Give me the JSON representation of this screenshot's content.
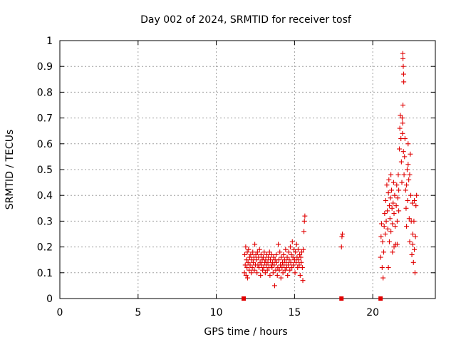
{
  "chart_data": {
    "type": "scatter",
    "title": "Day 002 of 2024, SRMTID for receiver tosf",
    "xlabel": "GPS time / hours",
    "ylabel": "SRMTID / TECUs",
    "xlim": [
      0,
      24
    ],
    "ylim": [
      0,
      1
    ],
    "x_ticks": [
      0,
      5,
      10,
      15,
      20
    ],
    "x_tick_labels": [
      "0",
      "5",
      "10",
      "15",
      "20"
    ],
    "y_ticks": [
      0,
      0.1,
      0.2,
      0.3,
      0.4,
      0.5,
      0.6,
      0.7,
      0.8,
      0.9,
      1
    ],
    "y_tick_labels": [
      "0",
      "0.1",
      "0.2",
      "0.3",
      "0.4",
      "0.5",
      "0.6",
      "0.7",
      "0.8",
      "0.9",
      "1"
    ],
    "grid": true,
    "marker": "+",
    "series": [
      {
        "name": "SRMTID",
        "color": "#e00000",
        "points": [
          [
            11.8,
            0.1
          ],
          [
            11.82,
            0.17
          ],
          [
            11.85,
            0.13
          ],
          [
            11.88,
            0.2
          ],
          [
            11.9,
            0.09
          ],
          [
            11.93,
            0.15
          ],
          [
            11.96,
            0.12
          ],
          [
            11.98,
            0.18
          ],
          [
            12.0,
            0.08
          ],
          [
            12.03,
            0.14
          ],
          [
            12.06,
            0.19
          ],
          [
            12.1,
            0.11
          ],
          [
            12.13,
            0.16
          ],
          [
            12.16,
            0.13
          ],
          [
            12.2,
            0.17
          ],
          [
            12.23,
            0.1
          ],
          [
            12.26,
            0.15
          ],
          [
            12.3,
            0.12
          ],
          [
            12.33,
            0.18
          ],
          [
            12.36,
            0.14
          ],
          [
            12.4,
            0.16
          ],
          [
            12.43,
            0.11
          ],
          [
            12.46,
            0.21
          ],
          [
            12.5,
            0.13
          ],
          [
            12.53,
            0.17
          ],
          [
            12.56,
            0.15
          ],
          [
            12.6,
            0.1
          ],
          [
            12.63,
            0.18
          ],
          [
            12.66,
            0.13
          ],
          [
            12.7,
            0.16
          ],
          [
            12.73,
            0.12
          ],
          [
            12.76,
            0.19
          ],
          [
            12.8,
            0.14
          ],
          [
            12.83,
            0.09
          ],
          [
            12.86,
            0.17
          ],
          [
            12.9,
            0.13
          ],
          [
            12.93,
            0.15
          ],
          [
            12.96,
            0.11
          ],
          [
            13.0,
            0.16
          ],
          [
            13.03,
            0.12
          ],
          [
            13.06,
            0.18
          ],
          [
            13.1,
            0.14
          ],
          [
            13.13,
            0.1
          ],
          [
            13.16,
            0.15
          ],
          [
            13.2,
            0.13
          ],
          [
            13.23,
            0.17
          ],
          [
            13.26,
            0.11
          ],
          [
            13.3,
            0.14
          ],
          [
            13.33,
            0.16
          ],
          [
            13.36,
            0.12
          ],
          [
            13.4,
            0.18
          ],
          [
            13.43,
            0.09
          ],
          [
            13.46,
            0.15
          ],
          [
            13.5,
            0.13
          ],
          [
            13.53,
            0.17
          ],
          [
            13.56,
            0.12
          ],
          [
            13.6,
            0.14
          ],
          [
            13.63,
            0.1
          ],
          [
            13.66,
            0.16
          ],
          [
            13.7,
            0.13
          ],
          [
            13.73,
            0.05
          ],
          [
            13.76,
            0.15
          ],
          [
            13.8,
            0.11
          ],
          [
            13.83,
            0.17
          ],
          [
            13.86,
            0.14
          ],
          [
            13.9,
            0.09
          ],
          [
            13.93,
            0.12
          ],
          [
            13.96,
            0.21
          ],
          [
            14.0,
            0.15
          ],
          [
            14.03,
            0.11
          ],
          [
            14.06,
            0.18
          ],
          [
            14.1,
            0.13
          ],
          [
            14.13,
            0.08
          ],
          [
            14.16,
            0.16
          ],
          [
            14.2,
            0.12
          ],
          [
            14.23,
            0.14
          ],
          [
            14.26,
            0.1
          ],
          [
            14.3,
            0.17
          ],
          [
            14.33,
            0.13
          ],
          [
            14.36,
            0.15
          ],
          [
            14.4,
            0.11
          ],
          [
            14.43,
            0.19
          ],
          [
            14.46,
            0.14
          ],
          [
            14.5,
            0.12
          ],
          [
            14.53,
            0.16
          ],
          [
            14.56,
            0.09
          ],
          [
            14.6,
            0.13
          ],
          [
            14.63,
            0.18
          ],
          [
            14.66,
            0.15
          ],
          [
            14.7,
            0.11
          ],
          [
            14.73,
            0.2
          ],
          [
            14.76,
            0.14
          ],
          [
            14.8,
            0.17
          ],
          [
            14.83,
            0.12
          ],
          [
            14.86,
            0.22
          ],
          [
            14.9,
            0.16
          ],
          [
            14.93,
            0.13
          ],
          [
            14.96,
            0.19
          ],
          [
            15.0,
            0.15
          ],
          [
            15.03,
            0.1
          ],
          [
            15.06,
            0.18
          ],
          [
            15.1,
            0.14
          ],
          [
            15.13,
            0.21
          ],
          [
            15.16,
            0.16
          ],
          [
            15.2,
            0.12
          ],
          [
            15.23,
            0.19
          ],
          [
            15.26,
            0.15
          ],
          [
            15.3,
            0.13
          ],
          [
            15.33,
            0.17
          ],
          [
            15.36,
            0.09
          ],
          [
            15.4,
            0.16
          ],
          [
            15.43,
            0.14
          ],
          [
            15.46,
            0.18
          ],
          [
            15.5,
            0.12
          ],
          [
            15.53,
            0.07
          ],
          [
            15.56,
            0.19
          ],
          [
            15.6,
            0.26
          ],
          [
            15.63,
            0.3
          ],
          [
            15.66,
            0.32
          ],
          [
            18.0,
            0.2
          ],
          [
            18.03,
            0.24
          ],
          [
            18.06,
            0.25
          ],
          [
            20.5,
            0.16
          ],
          [
            20.53,
            0.24
          ],
          [
            20.56,
            0.29
          ],
          [
            20.6,
            0.12
          ],
          [
            20.63,
            0.22
          ],
          [
            20.66,
            0.08
          ],
          [
            20.7,
            0.18
          ],
          [
            20.73,
            0.28
          ],
          [
            20.76,
            0.33
          ],
          [
            20.8,
            0.25
          ],
          [
            20.83,
            0.38
          ],
          [
            20.86,
            0.3
          ],
          [
            20.9,
            0.44
          ],
          [
            20.93,
            0.34
          ],
          [
            20.96,
            0.27
          ],
          [
            21.0,
            0.41
          ],
          [
            21.03,
            0.46
          ],
          [
            21.06,
            0.36
          ],
          [
            21.1,
            0.31
          ],
          [
            21.13,
            0.39
          ],
          [
            21.16,
            0.48
          ],
          [
            21.2,
            0.42
          ],
          [
            21.23,
            0.35
          ],
          [
            21.26,
            0.29
          ],
          [
            21.3,
            0.37
          ],
          [
            21.33,
            0.45
          ],
          [
            21.36,
            0.33
          ],
          [
            21.4,
            0.4
          ],
          [
            21.43,
            0.28
          ],
          [
            21.46,
            0.21
          ],
          [
            21.5,
            0.36
          ],
          [
            21.53,
            0.44
          ],
          [
            21.56,
            0.3
          ],
          [
            21.6,
            0.39
          ],
          [
            21.63,
            0.48
          ],
          [
            21.66,
            0.34
          ],
          [
            21.7,
            0.58
          ],
          [
            21.73,
            0.66
          ],
          [
            21.76,
            0.71
          ],
          [
            21.8,
            0.62
          ],
          [
            21.83,
            0.53
          ],
          [
            21.86,
            0.45
          ],
          [
            21.9,
            0.64
          ],
          [
            21.93,
            0.75
          ],
          [
            21.96,
            0.57
          ],
          [
            22.0,
            0.48
          ],
          [
            22.03,
            0.55
          ],
          [
            22.06,
            0.62
          ],
          [
            22.1,
            0.42
          ],
          [
            22.13,
            0.35
          ],
          [
            22.16,
            0.28
          ],
          [
            22.2,
            0.5
          ],
          [
            22.23,
            0.38
          ],
          [
            22.26,
            0.6
          ],
          [
            22.3,
            0.46
          ],
          [
            22.33,
            0.31
          ],
          [
            22.36,
            0.22
          ],
          [
            22.4,
            0.56
          ],
          [
            22.43,
            0.4
          ],
          [
            22.46,
            0.3
          ],
          [
            22.5,
            0.17
          ],
          [
            22.53,
            0.37
          ],
          [
            22.56,
            0.25
          ],
          [
            22.6,
            0.14
          ],
          [
            22.63,
            0.3
          ],
          [
            22.66,
            0.38
          ],
          [
            22.7,
            0.1
          ],
          [
            22.73,
            0.24
          ],
          [
            22.76,
            0.36
          ],
          [
            22.8,
            0.4
          ],
          [
            21.92,
            0.95
          ],
          [
            21.93,
            0.93
          ],
          [
            21.95,
            0.9
          ],
          [
            21.97,
            0.87
          ],
          [
            21.98,
            0.84
          ],
          [
            21.88,
            0.7
          ],
          [
            21.91,
            0.68
          ],
          [
            21.0,
            0.12
          ],
          [
            21.06,
            0.22
          ],
          [
            21.16,
            0.26
          ],
          [
            21.26,
            0.18
          ],
          [
            21.36,
            0.2
          ],
          [
            21.56,
            0.21
          ],
          [
            21.66,
            0.42
          ],
          [
            22.16,
            0.44
          ],
          [
            22.26,
            0.52
          ],
          [
            22.36,
            0.48
          ],
          [
            22.56,
            0.21
          ],
          [
            22.66,
            0.19
          ]
        ]
      }
    ],
    "data_gaps": [
      {
        "x": 11.75,
        "y": 0
      },
      {
        "x": 18.0,
        "y": 0
      },
      {
        "x": 20.5,
        "y": 0
      }
    ]
  }
}
